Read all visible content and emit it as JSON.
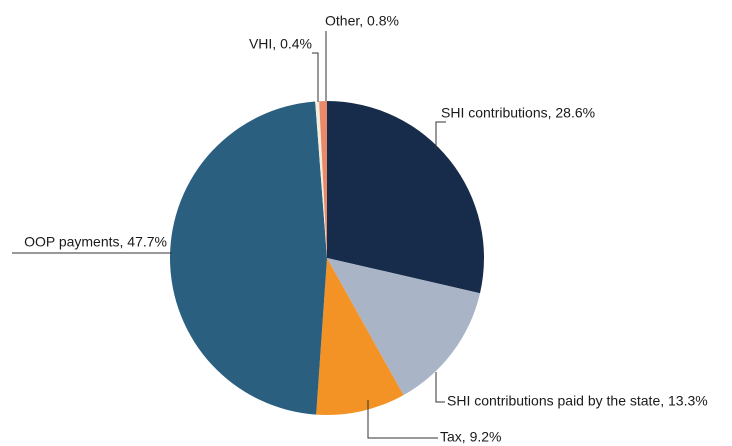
{
  "chart_data": {
    "type": "pie",
    "values": [
      28.6,
      13.3,
      9.2,
      47.7,
      0.4,
      0.8
    ],
    "value_labels": [
      "SHI contributions, 28.6%",
      "SHI contributions paid by the state, 13.3%",
      "Tax, 9.2%",
      "OOP payments, 47.7%",
      "VHI, 0.4%",
      "Other, 0.8%"
    ],
    "colors": [
      "#172b4a",
      "#a9b4c7",
      "#f39325",
      "#2a5f80",
      "#f3eedb",
      "#e8896a"
    ]
  }
}
